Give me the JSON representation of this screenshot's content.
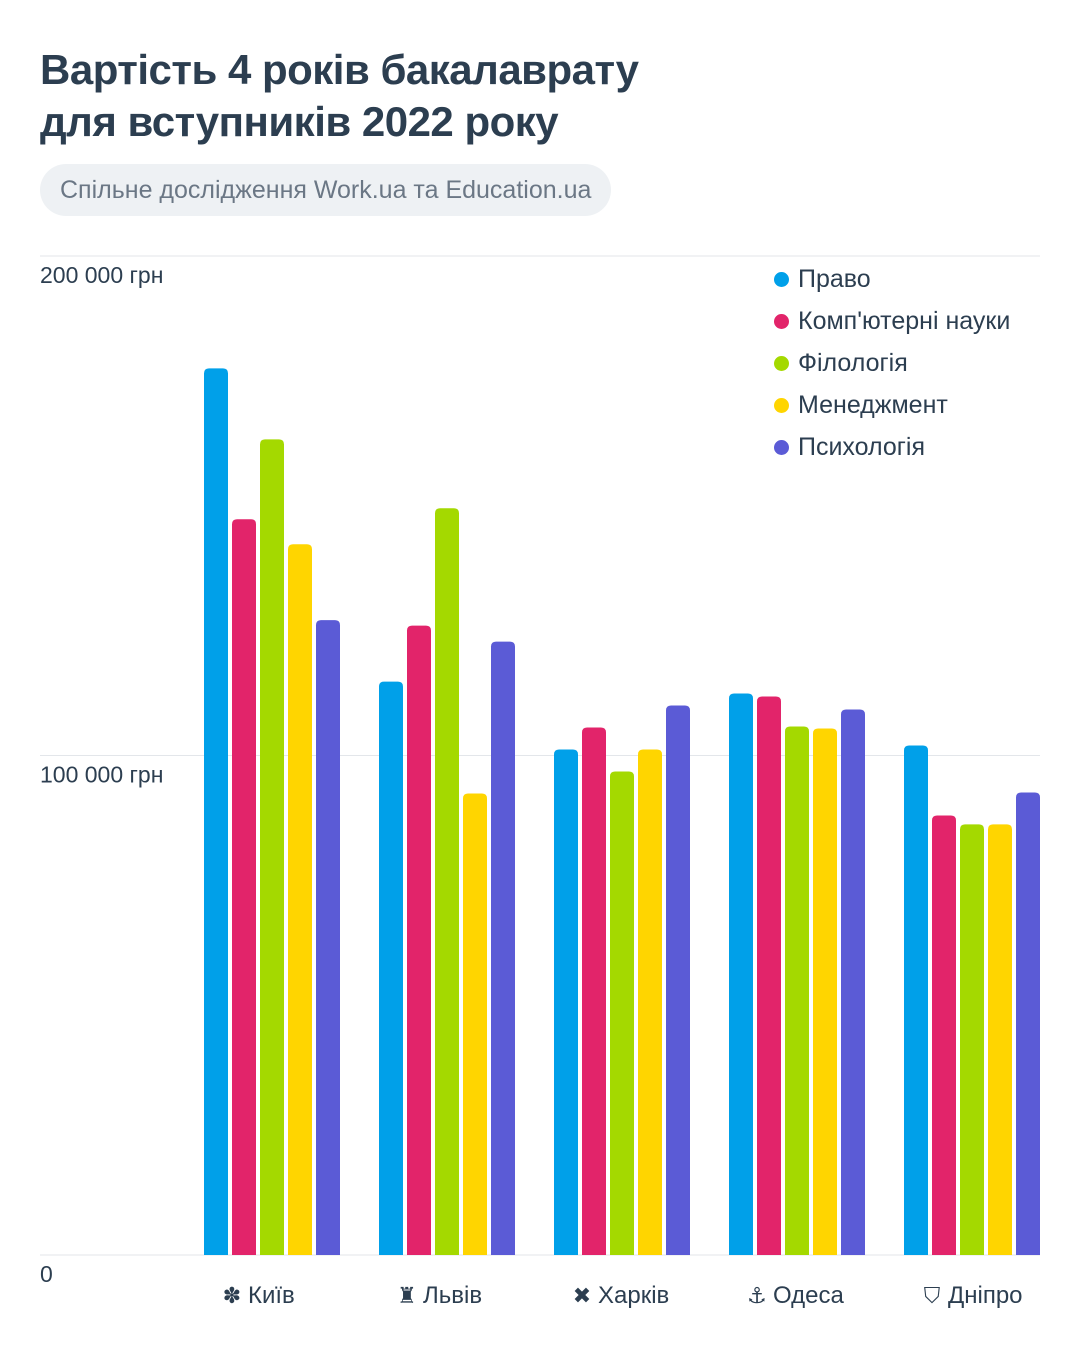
{
  "title_line1": "Вартість 4 років бакалаврату",
  "title_line2": "для вступників 2022 року",
  "subtitle": "Спільне дослідження Work.ua та Education.ua",
  "chart_data": {
    "type": "bar",
    "title": "Вартість 4 років бакалаврату для вступників 2022 року",
    "categories": [
      "Київ",
      "Львів",
      "Харків",
      "Одеса",
      "Дніпро"
    ],
    "category_icons": [
      "chestnut-leaf-icon",
      "city-skyline-icon",
      "kharkiv-emblem-icon",
      "anchor-icon",
      "shield-icon"
    ],
    "ylim": [
      0,
      200000
    ],
    "yticks": [
      0,
      100000,
      200000
    ],
    "ytick_labels": [
      "0",
      "100 000 грн",
      "200 000 грн"
    ],
    "grid": true,
    "legend_position": "top-right",
    "series": [
      {
        "name": "Право",
        "color": "#00a0e9",
        "values": [
          177500,
          114800,
          101200,
          112400,
          102000
        ]
      },
      {
        "name": "Комп'ютерні науки",
        "color": "#e2246a",
        "values": [
          147300,
          126000,
          105600,
          111800,
          88000
        ]
      },
      {
        "name": "Філологія",
        "color": "#a4d900",
        "values": [
          163300,
          149500,
          96800,
          105800,
          86200
        ]
      },
      {
        "name": "Менеджмент",
        "color": "#ffd500",
        "values": [
          142300,
          92400,
          101200,
          105400,
          86200
        ]
      },
      {
        "name": "Психологія",
        "color": "#5b5bd6",
        "values": [
          127100,
          122800,
          110000,
          109200,
          92600
        ]
      }
    ]
  }
}
